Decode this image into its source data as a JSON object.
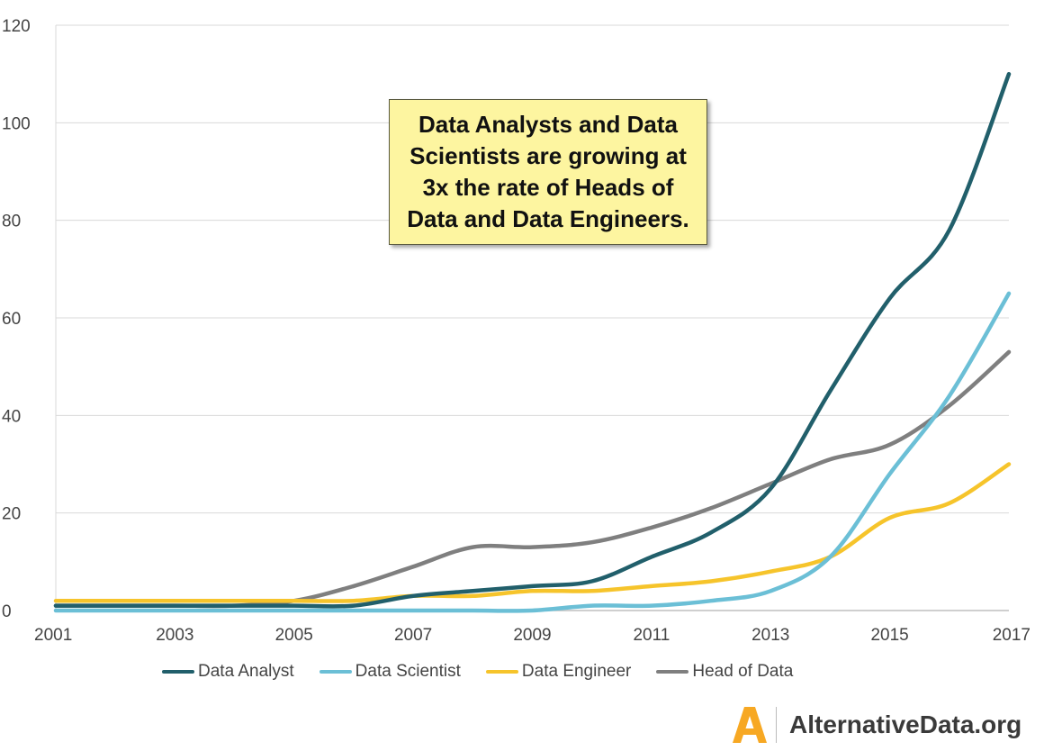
{
  "chart_data": {
    "type": "line",
    "x": [
      2001,
      2002,
      2003,
      2004,
      2005,
      2006,
      2007,
      2008,
      2009,
      2010,
      2011,
      2012,
      2013,
      2014,
      2015,
      2016,
      2017
    ],
    "series": [
      {
        "name": "Data Analyst",
        "color": "#215f6b",
        "values": [
          1,
          1,
          1,
          1,
          1,
          1,
          3,
          4,
          5,
          6,
          11,
          16,
          25,
          45,
          64,
          78,
          110
        ]
      },
      {
        "name": "Data Scientist",
        "color": "#6bbfd6",
        "values": [
          0,
          0,
          0,
          0,
          0,
          0,
          0,
          0,
          0,
          1,
          1,
          2,
          4,
          11,
          28,
          44,
          65
        ]
      },
      {
        "name": "Data Engineer",
        "color": "#f6c42b",
        "values": [
          2,
          2,
          2,
          2,
          2,
          2,
          3,
          3,
          4,
          4,
          5,
          6,
          8,
          11,
          19,
          22,
          30
        ]
      },
      {
        "name": "Head of Data",
        "color": "#7f7f7f",
        "values": [
          1,
          1,
          1,
          1,
          2,
          5,
          9,
          13,
          13,
          14,
          17,
          21,
          26,
          31,
          34,
          42,
          53
        ]
      }
    ],
    "x_ticks": [
      "2001",
      "2003",
      "2005",
      "2007",
      "2009",
      "2011",
      "2013",
      "2015",
      "2017"
    ],
    "y_ticks": [
      "0",
      "20",
      "40",
      "60",
      "80",
      "100",
      "120"
    ],
    "ylim": [
      0,
      120
    ],
    "xlim": [
      2001,
      2017
    ],
    "grid": "horizontal",
    "legend_position": "bottom",
    "title": "",
    "xlabel": "",
    "ylabel": ""
  },
  "callout": {
    "line1": "Data Analysts and Data",
    "line2": "Scientists are growing at",
    "line3": "3x the rate of Heads of",
    "line4": "Data and Data Engineers."
  },
  "branding": {
    "logo_letter": "A",
    "logo_color": "#f7a823",
    "name": "AlternativeData.org"
  }
}
